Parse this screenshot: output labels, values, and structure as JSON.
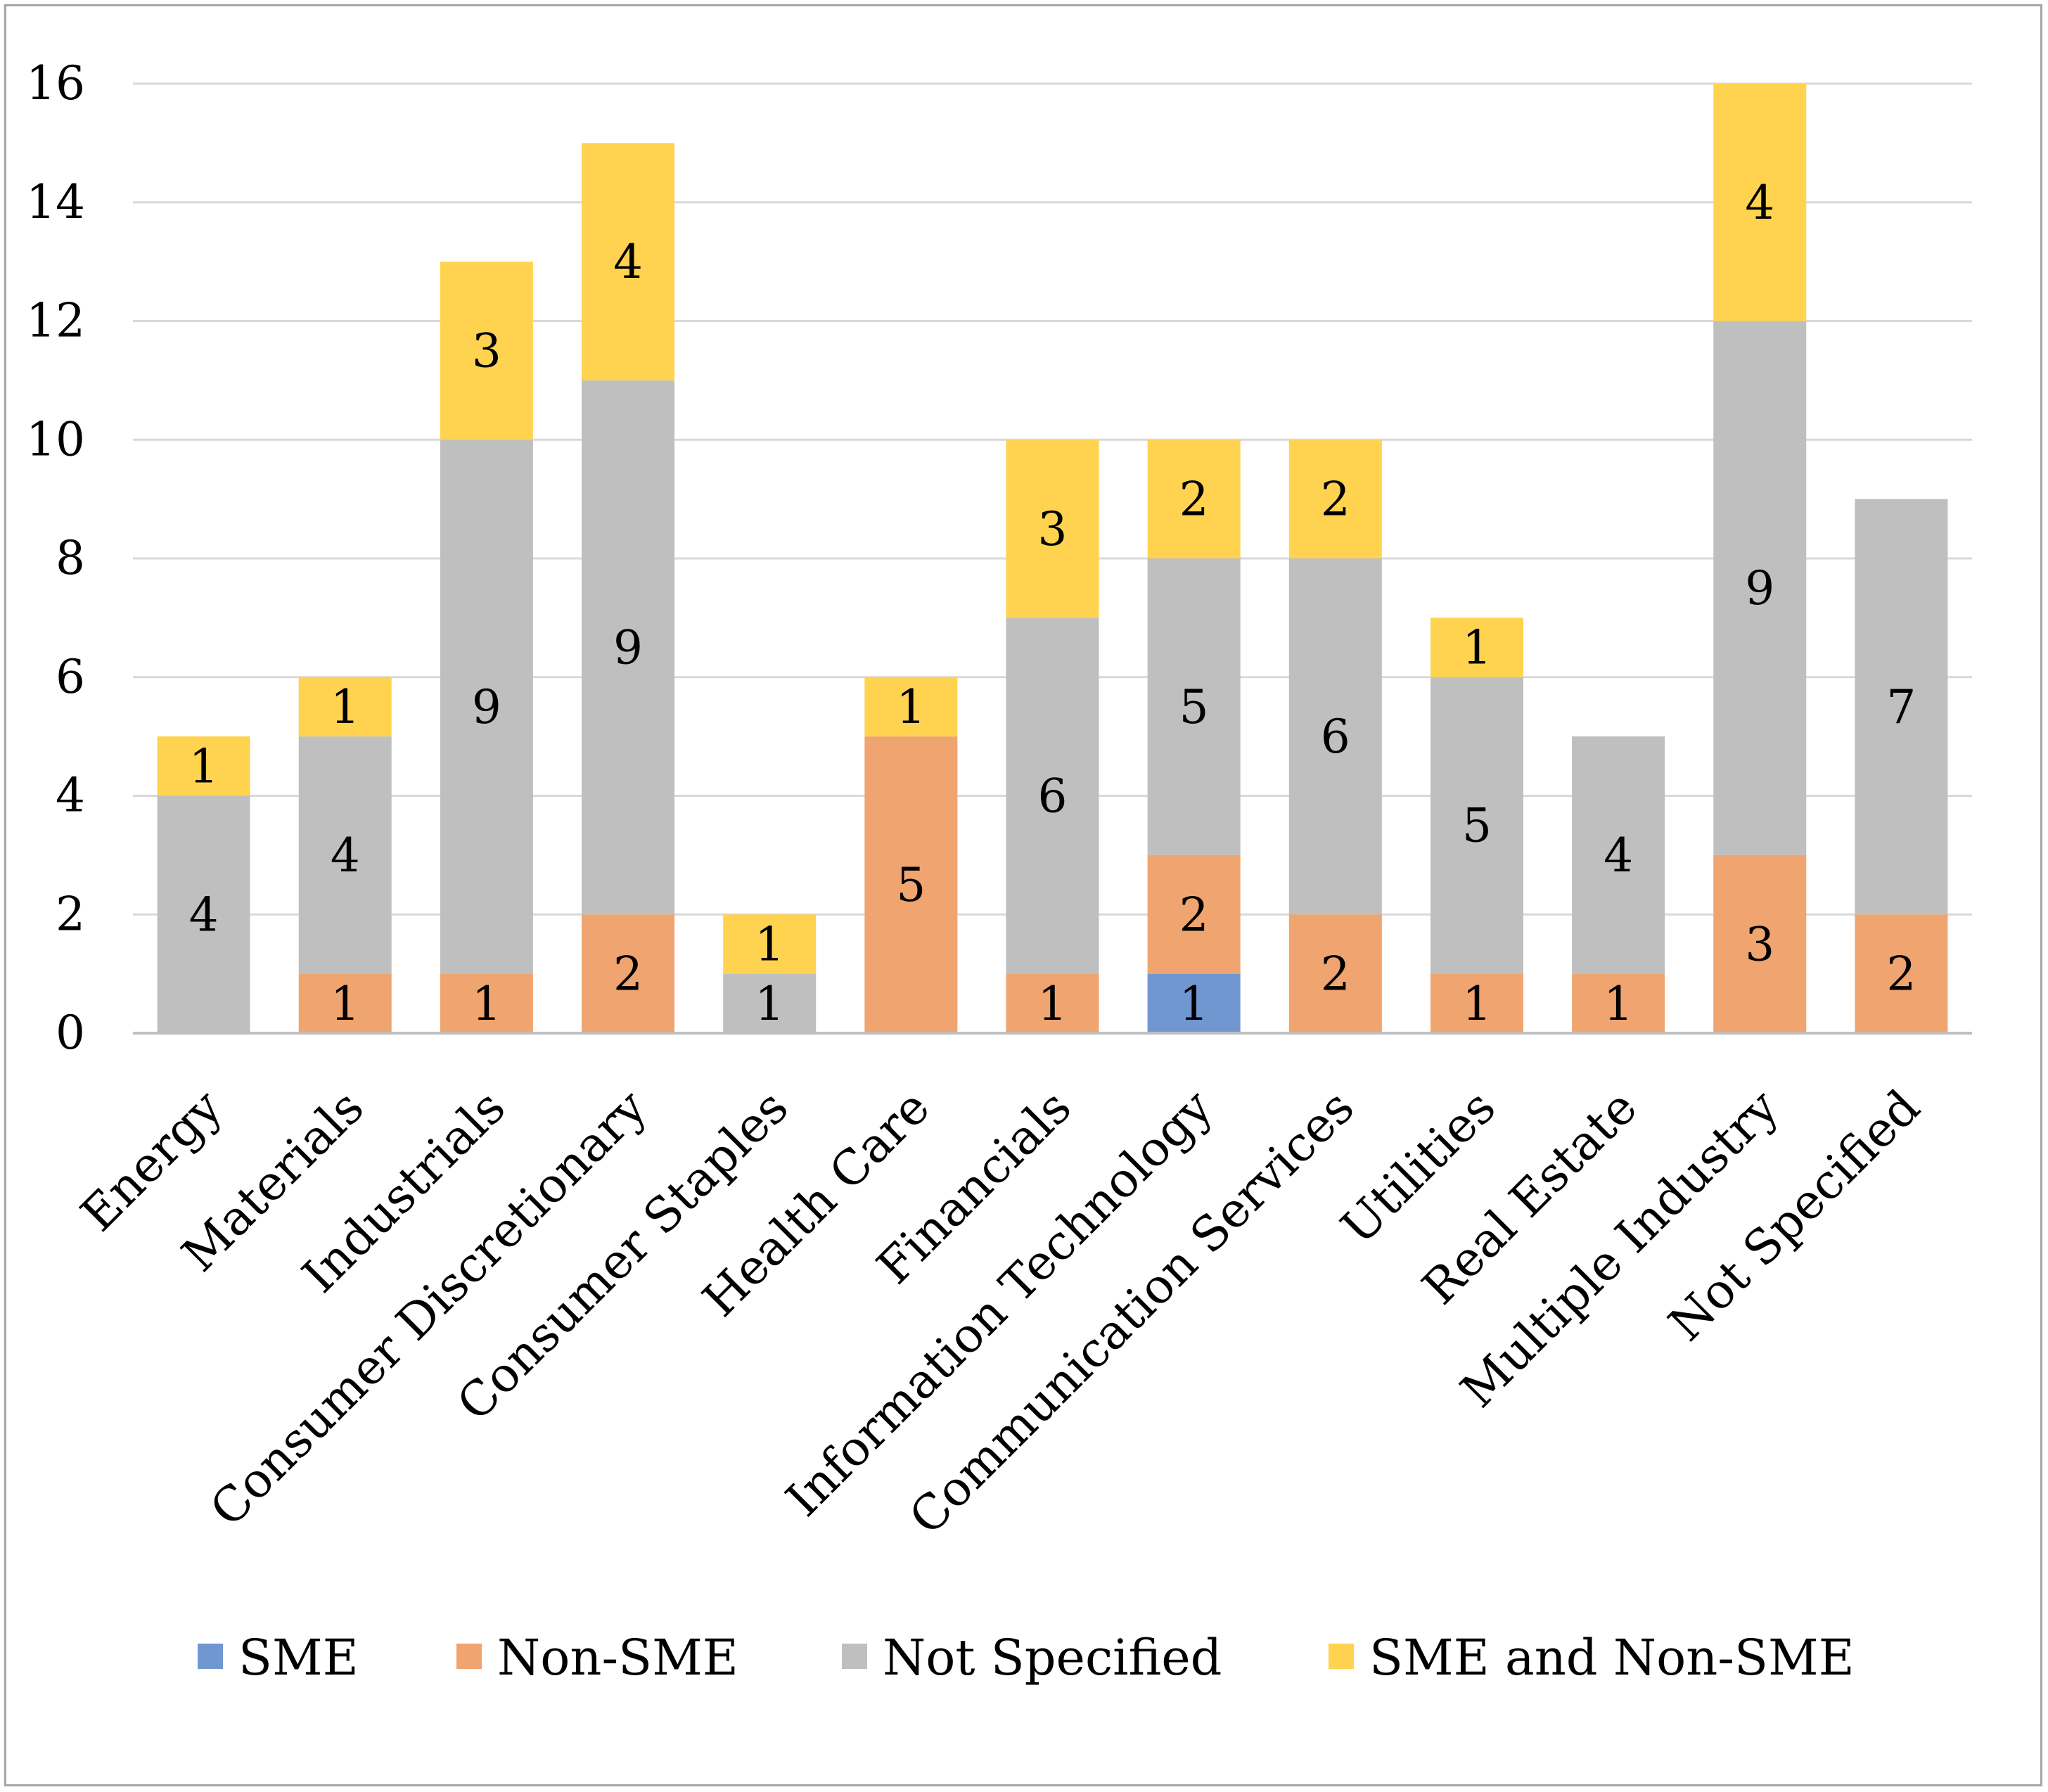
{
  "chart_data": {
    "type": "bar",
    "stacked": true,
    "title": "",
    "xlabel": "",
    "ylabel": "",
    "ylim": [
      0,
      16
    ],
    "yticks": [
      "0",
      "2",
      "4",
      "6",
      "8",
      "10",
      "12",
      "14",
      "16"
    ],
    "grid": true,
    "legend_position": "bottom",
    "categories": [
      "Energy",
      "Materials",
      "Industrials",
      "Consumer Discretionary",
      "Consumer Staples",
      "Health Care",
      "Financials",
      "Information Technology",
      "Communication Services",
      "Utilities",
      "Real Estate",
      "Multiple Industry",
      "Not Specified"
    ],
    "series": [
      {
        "name": "SME",
        "color": "#7197d1",
        "values": [
          0,
          0,
          0,
          0,
          0,
          0,
          0,
          1,
          0,
          0,
          0,
          0,
          0
        ]
      },
      {
        "name": "Non-SME",
        "color": "#f0a46f",
        "values": [
          0,
          1,
          1,
          2,
          0,
          5,
          1,
          2,
          2,
          1,
          1,
          3,
          2
        ]
      },
      {
        "name": "Not Specified",
        "color": "#bfbfbf",
        "values": [
          4,
          4,
          9,
          9,
          1,
          0,
          6,
          5,
          6,
          5,
          4,
          9,
          7
        ]
      },
      {
        "name": "SME and Non-SME",
        "color": "#ffd34f",
        "values": [
          1,
          1,
          3,
          4,
          1,
          1,
          3,
          2,
          2,
          1,
          0,
          4,
          0
        ]
      }
    ]
  }
}
